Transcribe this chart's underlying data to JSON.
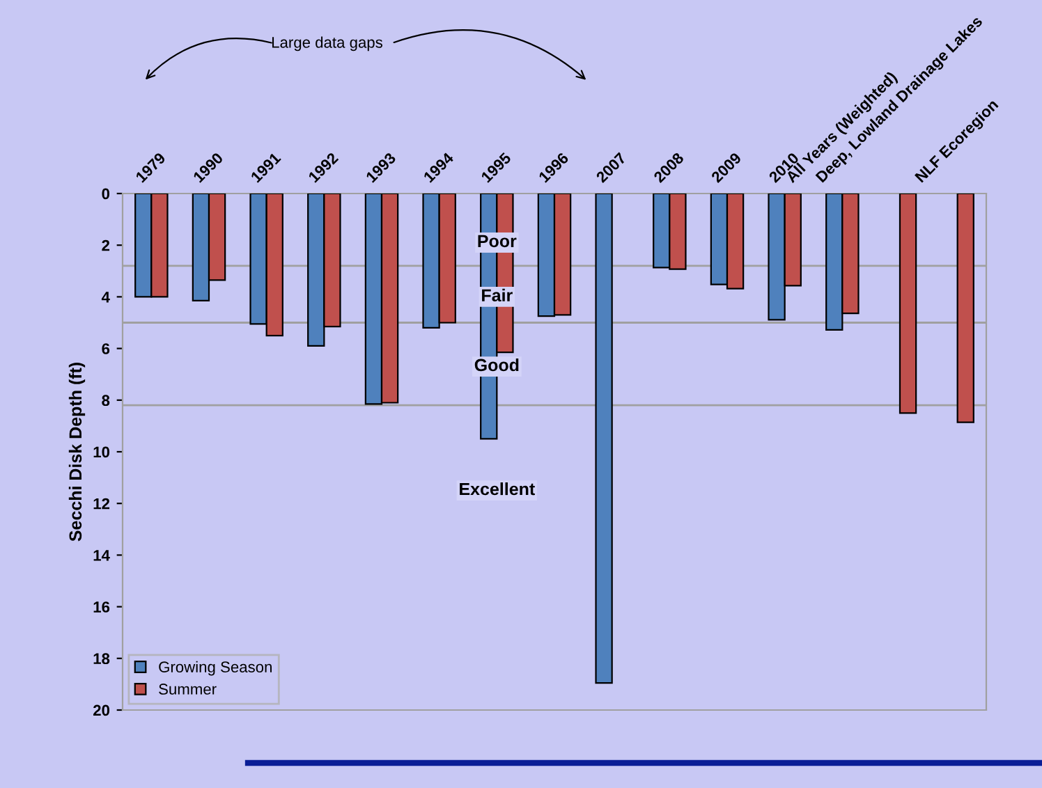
{
  "chart_data": {
    "type": "bar",
    "ylabel": "Secchi Disk Depth (ft)",
    "categories": [
      "1979",
      "1990",
      "1991",
      "1992",
      "1993",
      "1994",
      "1995",
      "1996",
      "2007",
      "2008",
      "2009",
      "2010",
      "All Years (Weighted)",
      "Deep, Lowland Drainage Lakes",
      "NLF Ecoregion"
    ],
    "series": [
      {
        "name": "Growing Season",
        "color": "#4f81bd",
        "values": [
          4.0,
          4.15,
          5.05,
          5.9,
          8.15,
          5.2,
          9.5,
          4.75,
          18.95,
          2.87,
          3.52,
          4.89,
          5.28,
          null,
          null
        ]
      },
      {
        "name": "Summer",
        "color": "#c0504d",
        "values": [
          4.0,
          3.35,
          5.5,
          5.15,
          8.1,
          5.0,
          6.15,
          4.7,
          null,
          2.93,
          3.68,
          3.57,
          4.64,
          8.5,
          8.86
        ]
      }
    ],
    "ylim": [
      20,
      0
    ],
    "yticks": [
      0,
      2,
      4,
      6,
      8,
      10,
      12,
      14,
      16,
      18,
      20
    ],
    "ref_lines": [
      {
        "axis": "y",
        "value": 2.8,
        "color": "#a0a0a0"
      },
      {
        "axis": "y",
        "value": 5.0,
        "color": "#a0a0a0"
      },
      {
        "axis": "y",
        "value": 8.2,
        "color": "#a0a0a0"
      }
    ],
    "annotations": [
      "Large data gaps",
      "Poor",
      "Fair",
      "Good",
      "Excellent"
    ],
    "grid": false,
    "legend": "bottom left"
  }
}
